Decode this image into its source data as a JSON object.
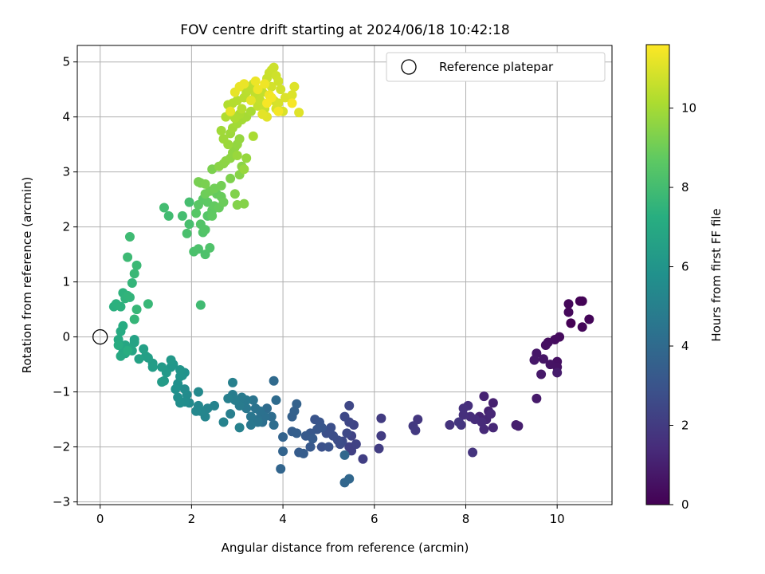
{
  "chart_data": {
    "type": "scatter",
    "title": "FOV centre drift starting at 2024/06/18 10:42:18",
    "xlabel": "Angular distance from reference (arcmin)",
    "ylabel": "Rotation from reference (arcmin)",
    "xlim": [
      -0.5,
      11.2
    ],
    "ylim": [
      -3.05,
      5.3
    ],
    "xticks": [
      0,
      2,
      4,
      6,
      8,
      10
    ],
    "yticks": [
      -3,
      -2,
      -1,
      0,
      1,
      2,
      3,
      4,
      5
    ],
    "grid": true,
    "legend": {
      "position": "top-right",
      "entries": [
        "Reference platepar"
      ]
    },
    "reference_point": {
      "x": 0,
      "y": 0
    },
    "colorbar": {
      "label": "Hours from first FF file",
      "colormap": "viridis",
      "range": [
        0,
        11.6
      ],
      "ticks": [
        0,
        2,
        4,
        6,
        8,
        10
      ]
    },
    "series": [
      {
        "points": [
          [
            10.3,
            0.25
          ],
          [
            10.5,
            0.65
          ],
          [
            10.55,
            0.65
          ],
          [
            10.7,
            0.32
          ],
          [
            10.55,
            0.18
          ],
          [
            10.25,
            0.6
          ],
          [
            10.25,
            0.45
          ],
          [
            10.05,
            0.0
          ],
          [
            9.95,
            -0.05
          ],
          [
            9.8,
            -0.1
          ],
          [
            9.75,
            -0.15
          ],
          [
            10.0,
            -0.45
          ],
          [
            10.0,
            -0.55
          ],
          [
            9.85,
            -0.5
          ],
          [
            9.7,
            -0.4
          ],
          [
            9.55,
            -0.3
          ],
          [
            9.5,
            -0.42
          ],
          [
            9.65,
            -0.68
          ],
          [
            9.55,
            -1.12
          ],
          [
            10.0,
            -0.65
          ],
          [
            9.1,
            -1.6
          ],
          [
            9.15,
            -1.62
          ],
          [
            8.6,
            -1.2
          ],
          [
            8.5,
            -1.35
          ],
          [
            8.4,
            -1.08
          ],
          [
            8.3,
            -1.45
          ],
          [
            8.45,
            -1.5
          ],
          [
            8.55,
            -1.4
          ],
          [
            8.6,
            -1.65
          ],
          [
            8.4,
            -1.68
          ],
          [
            8.35,
            -1.55
          ],
          [
            8.2,
            -1.5
          ],
          [
            8.1,
            -1.45
          ],
          [
            8.05,
            -1.25
          ],
          [
            7.95,
            -1.42
          ],
          [
            7.95,
            -1.3
          ],
          [
            7.65,
            -1.6
          ],
          [
            8.15,
            -2.1
          ],
          [
            7.9,
            -1.6
          ],
          [
            7.85,
            -1.55
          ],
          [
            6.95,
            -1.5
          ],
          [
            6.85,
            -1.62
          ],
          [
            6.9,
            -1.7
          ],
          [
            6.15,
            -1.48
          ],
          [
            6.15,
            -1.8
          ],
          [
            6.1,
            -2.03
          ],
          [
            5.75,
            -2.22
          ],
          [
            5.5,
            -2.07
          ],
          [
            5.45,
            -2.0
          ],
          [
            5.6,
            -1.95
          ],
          [
            5.5,
            -1.8
          ],
          [
            5.55,
            -1.6
          ],
          [
            5.45,
            -1.55
          ],
          [
            5.45,
            -1.25
          ],
          [
            5.35,
            -1.45
          ],
          [
            5.4,
            -1.75
          ],
          [
            5.3,
            -1.9
          ],
          [
            5.25,
            -1.95
          ],
          [
            5.2,
            -1.88
          ],
          [
            5.1,
            -1.8
          ],
          [
            5.05,
            -1.65
          ],
          [
            4.95,
            -1.75
          ],
          [
            4.85,
            -2.0
          ],
          [
            5.0,
            -2.0
          ],
          [
            4.7,
            -1.5
          ],
          [
            4.8,
            -1.55
          ],
          [
            4.85,
            -1.65
          ],
          [
            4.75,
            -1.68
          ],
          [
            4.6,
            -1.75
          ],
          [
            4.6,
            -2.0
          ],
          [
            4.5,
            -1.8
          ],
          [
            4.65,
            -1.85
          ],
          [
            4.35,
            -2.1
          ],
          [
            4.45,
            -2.12
          ],
          [
            4.2,
            -1.72
          ],
          [
            4.3,
            -1.75
          ],
          [
            4.2,
            -1.45
          ],
          [
            4.25,
            -1.35
          ],
          [
            4.3,
            -1.22
          ],
          [
            4.0,
            -1.82
          ],
          [
            4.0,
            -2.08
          ],
          [
            3.95,
            -2.4
          ],
          [
            5.35,
            -2.65
          ],
          [
            5.45,
            -2.58
          ],
          [
            5.35,
            -2.15
          ]
        ]
      },
      {
        "points": [
          [
            3.8,
            -0.8
          ],
          [
            3.85,
            -1.15
          ],
          [
            3.65,
            -1.3
          ],
          [
            3.75,
            -1.45
          ],
          [
            3.8,
            -1.6
          ],
          [
            3.55,
            -1.55
          ],
          [
            3.6,
            -1.45
          ],
          [
            3.5,
            -1.35
          ],
          [
            3.45,
            -1.5
          ],
          [
            3.4,
            -1.3
          ],
          [
            3.35,
            -1.15
          ],
          [
            3.45,
            -1.55
          ],
          [
            3.3,
            -1.45
          ],
          [
            3.3,
            -1.6
          ],
          [
            3.2,
            -1.3
          ],
          [
            3.2,
            -1.15
          ],
          [
            3.1,
            -1.1
          ],
          [
            3.05,
            -1.25
          ],
          [
            2.9,
            -1.05
          ],
          [
            2.95,
            -1.15
          ],
          [
            2.85,
            -1.4
          ],
          [
            2.8,
            -1.12
          ],
          [
            2.9,
            -0.83
          ],
          [
            3.05,
            -1.65
          ],
          [
            2.7,
            -1.55
          ],
          [
            2.5,
            -1.25
          ],
          [
            2.35,
            -1.3
          ],
          [
            2.3,
            -1.45
          ],
          [
            2.2,
            -1.35
          ],
          [
            2.15,
            -1.25
          ],
          [
            2.1,
            -1.35
          ],
          [
            2.15,
            -1.0
          ],
          [
            1.95,
            -1.2
          ],
          [
            1.9,
            -1.05
          ],
          [
            1.85,
            -0.95
          ],
          [
            1.85,
            -1.18
          ],
          [
            1.75,
            -1.2
          ],
          [
            1.7,
            -1.1
          ],
          [
            1.7,
            -0.85
          ],
          [
            1.65,
            -0.95
          ],
          [
            1.85,
            -0.65
          ],
          [
            1.8,
            -0.7
          ],
          [
            1.75,
            -0.72
          ],
          [
            1.75,
            -0.6
          ],
          [
            1.6,
            -0.5
          ],
          [
            1.55,
            -0.55
          ],
          [
            1.55,
            -0.42
          ],
          [
            1.45,
            -0.65
          ],
          [
            1.35,
            -0.55
          ],
          [
            1.4,
            -0.8
          ],
          [
            1.35,
            -0.82
          ],
          [
            1.15,
            -0.48
          ],
          [
            1.15,
            -0.55
          ],
          [
            1.05,
            -0.38
          ],
          [
            1.0,
            -0.35
          ],
          [
            0.95,
            -0.22
          ],
          [
            0.85,
            -0.4
          ],
          [
            0.75,
            -0.05
          ],
          [
            0.75,
            -0.1
          ],
          [
            0.7,
            -0.25
          ],
          [
            0.6,
            -0.2
          ],
          [
            0.55,
            -0.15
          ],
          [
            0.55,
            -0.3
          ],
          [
            0.5,
            -0.28
          ],
          [
            0.45,
            -0.35
          ],
          [
            0.4,
            -0.05
          ],
          [
            0.45,
            0.1
          ],
          [
            0.5,
            0.2
          ],
          [
            0.4,
            -0.15
          ],
          [
            0.6,
            -0.25
          ]
        ]
      },
      {
        "points": [
          [
            0.3,
            0.55
          ],
          [
            0.35,
            0.6
          ],
          [
            0.45,
            0.55
          ],
          [
            0.5,
            0.8
          ],
          [
            0.55,
            0.7
          ],
          [
            0.6,
            0.75
          ],
          [
            0.65,
            0.72
          ],
          [
            0.7,
            0.98
          ],
          [
            0.75,
            0.32
          ],
          [
            0.8,
            0.5
          ],
          [
            1.05,
            0.6
          ],
          [
            0.75,
            1.15
          ],
          [
            0.8,
            1.3
          ],
          [
            0.6,
            1.45
          ],
          [
            0.65,
            1.82
          ],
          [
            2.2,
            0.58
          ],
          [
            1.5,
            2.2
          ],
          [
            1.4,
            2.35
          ],
          [
            1.8,
            2.2
          ],
          [
            1.95,
            2.45
          ],
          [
            1.95,
            2.05
          ],
          [
            1.9,
            1.88
          ],
          [
            2.05,
            1.55
          ],
          [
            2.15,
            1.6
          ],
          [
            2.3,
            1.5
          ],
          [
            2.4,
            1.62
          ],
          [
            2.25,
            1.9
          ],
          [
            2.2,
            2.05
          ],
          [
            2.3,
            1.95
          ],
          [
            2.35,
            2.2
          ],
          [
            2.1,
            2.25
          ],
          [
            2.15,
            2.4
          ],
          [
            2.25,
            2.5
          ],
          [
            2.35,
            2.45
          ],
          [
            2.45,
            2.3
          ],
          [
            2.45,
            2.2
          ],
          [
            2.5,
            2.38
          ],
          [
            2.55,
            2.6
          ],
          [
            2.6,
            2.35
          ],
          [
            2.65,
            2.55
          ],
          [
            2.7,
            2.45
          ],
          [
            2.3,
            2.6
          ],
          [
            2.4,
            2.65
          ],
          [
            2.5,
            2.7
          ],
          [
            2.65,
            2.75
          ],
          [
            2.2,
            2.8
          ],
          [
            2.15,
            2.82
          ],
          [
            2.3,
            2.78
          ],
          [
            2.45,
            3.05
          ],
          [
            2.85,
            2.88
          ],
          [
            2.95,
            2.6
          ],
          [
            3.0,
            2.4
          ],
          [
            3.15,
            2.42
          ],
          [
            3.05,
            2.95
          ],
          [
            3.1,
            3.1
          ]
        ]
      },
      {
        "points": [
          [
            2.6,
            3.1
          ],
          [
            2.7,
            3.15
          ],
          [
            2.75,
            3.2
          ],
          [
            2.85,
            3.25
          ],
          [
            2.9,
            3.35
          ],
          [
            2.95,
            3.45
          ],
          [
            3.0,
            3.5
          ],
          [
            3.05,
            3.6
          ],
          [
            3.2,
            3.25
          ],
          [
            3.15,
            3.05
          ],
          [
            3.0,
            3.3
          ],
          [
            2.8,
            3.5
          ],
          [
            2.85,
            3.7
          ],
          [
            2.7,
            3.6
          ],
          [
            2.65,
            3.75
          ],
          [
            2.9,
            3.8
          ],
          [
            3.0,
            3.88
          ],
          [
            3.1,
            3.95
          ],
          [
            3.2,
            4.0
          ],
          [
            3.3,
            4.1
          ],
          [
            3.35,
            3.65
          ],
          [
            3.05,
            4.05
          ],
          [
            2.95,
            3.98
          ],
          [
            2.85,
            4.08
          ],
          [
            2.75,
            4.0
          ],
          [
            2.8,
            4.22
          ],
          [
            2.9,
            4.25
          ],
          [
            3.0,
            4.3
          ],
          [
            3.1,
            4.15
          ],
          [
            3.15,
            4.35
          ],
          [
            3.2,
            4.45
          ],
          [
            3.25,
            4.5
          ],
          [
            3.3,
            4.55
          ],
          [
            3.35,
            4.6
          ],
          [
            3.4,
            4.4
          ],
          [
            3.45,
            4.2
          ],
          [
            3.5,
            4.3
          ],
          [
            3.55,
            4.45
          ],
          [
            3.6,
            4.15
          ],
          [
            3.65,
            4.7
          ],
          [
            3.7,
            4.8
          ],
          [
            3.75,
            4.85
          ],
          [
            3.8,
            4.9
          ],
          [
            3.85,
            4.75
          ],
          [
            3.9,
            4.65
          ],
          [
            3.95,
            4.5
          ],
          [
            3.75,
            4.55
          ],
          [
            3.8,
            4.3
          ],
          [
            3.85,
            4.15
          ],
          [
            3.9,
            4.25
          ],
          [
            4.0,
            4.1
          ],
          [
            4.05,
            4.35
          ],
          [
            4.2,
            4.4
          ],
          [
            4.25,
            4.55
          ],
          [
            4.35,
            4.08
          ],
          [
            3.65,
            4.0
          ],
          [
            3.55,
            4.05
          ],
          [
            3.3,
            4.3
          ],
          [
            2.95,
            4.45
          ],
          [
            2.85,
            4.1
          ],
          [
            3.05,
            4.55
          ],
          [
            3.15,
            4.6
          ],
          [
            3.4,
            4.65
          ],
          [
            3.45,
            4.5
          ],
          [
            3.6,
            4.6
          ],
          [
            3.7,
            4.4
          ],
          [
            3.75,
            4.35
          ],
          [
            3.9,
            4.1
          ],
          [
            4.2,
            4.25
          ],
          [
            3.65,
            4.25
          ]
        ]
      }
    ]
  }
}
